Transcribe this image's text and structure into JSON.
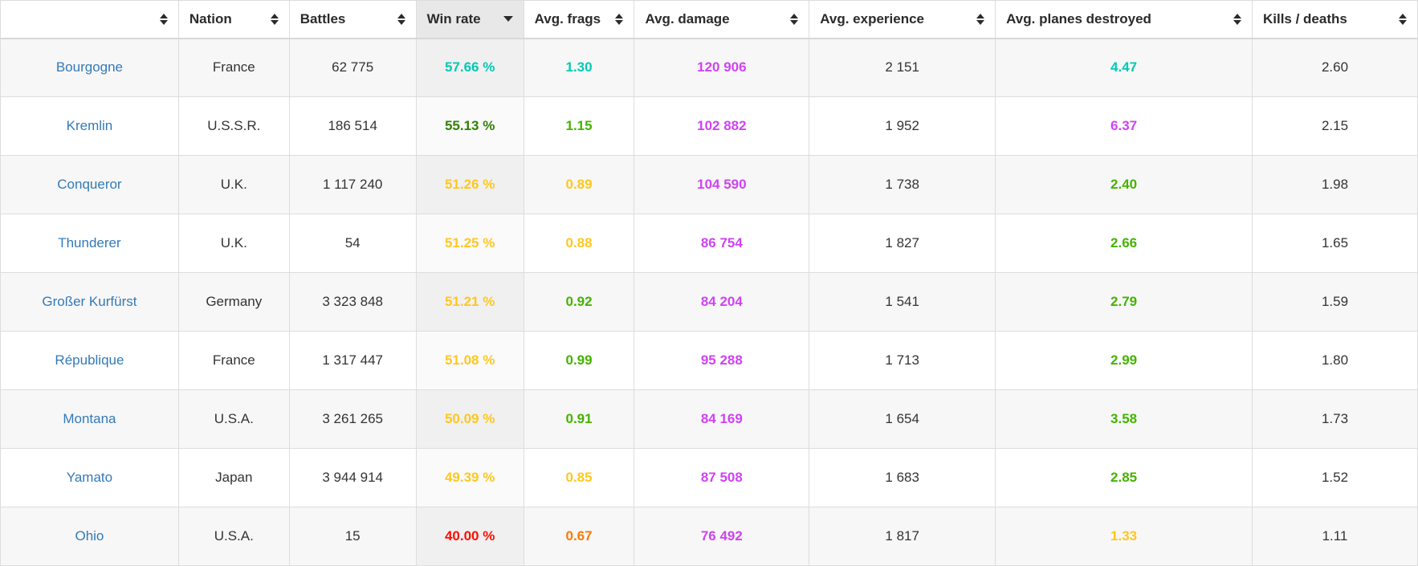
{
  "palette": {
    "great": "#02c9b3",
    "very_good": "#318000",
    "good": "#44b300",
    "average": "#ffc71f",
    "below_average": "#fe7903",
    "bad": "#fe0e00",
    "unicum": "#d042f3",
    "plain": "#333333",
    "link_blue": "#337ab7",
    "sorted_header_bg": "#e8e8e8"
  },
  "table": {
    "columns": [
      {
        "key": "ship",
        "label": "",
        "sorted": null,
        "sort_icon": "sort-both-icon"
      },
      {
        "key": "nation",
        "label": "Nation",
        "sorted": null,
        "sort_icon": "sort-both-icon"
      },
      {
        "key": "battles",
        "label": "Battles",
        "sorted": null,
        "sort_icon": "sort-both-icon"
      },
      {
        "key": "win_rate",
        "label": "Win rate",
        "sorted": "desc",
        "sort_icon": "sort-desc-icon"
      },
      {
        "key": "avg_frags",
        "label": "Avg. frags",
        "sorted": null,
        "sort_icon": "sort-both-icon"
      },
      {
        "key": "avg_damage",
        "label": "Avg. damage",
        "sorted": null,
        "sort_icon": "sort-both-icon"
      },
      {
        "key": "avg_experience",
        "label": "Avg. experience",
        "sorted": null,
        "sort_icon": "sort-both-icon"
      },
      {
        "key": "avg_planes",
        "label": "Avg. planes destroyed",
        "sorted": null,
        "sort_icon": "sort-both-icon"
      },
      {
        "key": "kills_deaths",
        "label": "Kills / deaths",
        "sorted": null,
        "sort_icon": "sort-both-icon"
      }
    ],
    "rows": [
      {
        "ship": "Bourgogne",
        "nation": "France",
        "battles": "62 775",
        "win_rate": "57.66 %",
        "avg_frags": "1.30",
        "avg_damage": "120 906",
        "avg_experience": "2 151",
        "avg_planes": "4.47",
        "kills_deaths": "2.60",
        "tiers": {
          "win_rate": "great",
          "avg_frags": "great",
          "avg_damage": "unicum",
          "avg_planes": "great"
        }
      },
      {
        "ship": "Kremlin",
        "nation": "U.S.S.R.",
        "battles": "186 514",
        "win_rate": "55.13 %",
        "avg_frags": "1.15",
        "avg_damage": "102 882",
        "avg_experience": "1 952",
        "avg_planes": "6.37",
        "kills_deaths": "2.15",
        "tiers": {
          "win_rate": "very_good",
          "avg_frags": "good",
          "avg_damage": "unicum",
          "avg_planes": "unicum"
        }
      },
      {
        "ship": "Conqueror",
        "nation": "U.K.",
        "battles": "1 117 240",
        "win_rate": "51.26 %",
        "avg_frags": "0.89",
        "avg_damage": "104 590",
        "avg_experience": "1 738",
        "avg_planes": "2.40",
        "kills_deaths": "1.98",
        "tiers": {
          "win_rate": "average",
          "avg_frags": "average",
          "avg_damage": "unicum",
          "avg_planes": "good"
        }
      },
      {
        "ship": "Thunderer",
        "nation": "U.K.",
        "battles": "54",
        "win_rate": "51.25 %",
        "avg_frags": "0.88",
        "avg_damage": "86 754",
        "avg_experience": "1 827",
        "avg_planes": "2.66",
        "kills_deaths": "1.65",
        "tiers": {
          "win_rate": "average",
          "avg_frags": "average",
          "avg_damage": "unicum",
          "avg_planes": "good"
        }
      },
      {
        "ship": "Großer Kurfürst",
        "nation": "Germany",
        "battles": "3 323 848",
        "win_rate": "51.21 %",
        "avg_frags": "0.92",
        "avg_damage": "84 204",
        "avg_experience": "1 541",
        "avg_planes": "2.79",
        "kills_deaths": "1.59",
        "tiers": {
          "win_rate": "average",
          "avg_frags": "good",
          "avg_damage": "unicum",
          "avg_planes": "good"
        }
      },
      {
        "ship": "République",
        "nation": "France",
        "battles": "1 317 447",
        "win_rate": "51.08 %",
        "avg_frags": "0.99",
        "avg_damage": "95 288",
        "avg_experience": "1 713",
        "avg_planes": "2.99",
        "kills_deaths": "1.80",
        "tiers": {
          "win_rate": "average",
          "avg_frags": "good",
          "avg_damage": "unicum",
          "avg_planes": "good"
        }
      },
      {
        "ship": "Montana",
        "nation": "U.S.A.",
        "battles": "3 261 265",
        "win_rate": "50.09 %",
        "avg_frags": "0.91",
        "avg_damage": "84 169",
        "avg_experience": "1 654",
        "avg_planes": "3.58",
        "kills_deaths": "1.73",
        "tiers": {
          "win_rate": "average",
          "avg_frags": "good",
          "avg_damage": "unicum",
          "avg_planes": "good"
        }
      },
      {
        "ship": "Yamato",
        "nation": "Japan",
        "battles": "3 944 914",
        "win_rate": "49.39 %",
        "avg_frags": "0.85",
        "avg_damage": "87 508",
        "avg_experience": "1 683",
        "avg_planes": "2.85",
        "kills_deaths": "1.52",
        "tiers": {
          "win_rate": "average",
          "avg_frags": "average",
          "avg_damage": "unicum",
          "avg_planes": "good"
        }
      },
      {
        "ship": "Ohio",
        "nation": "U.S.A.",
        "battles": "15",
        "win_rate": "40.00 %",
        "avg_frags": "0.67",
        "avg_damage": "76 492",
        "avg_experience": "1 817",
        "avg_planes": "1.33",
        "kills_deaths": "1.11",
        "tiers": {
          "win_rate": "bad",
          "avg_frags": "below_average",
          "avg_damage": "unicum",
          "avg_planes": "average"
        }
      }
    ]
  }
}
